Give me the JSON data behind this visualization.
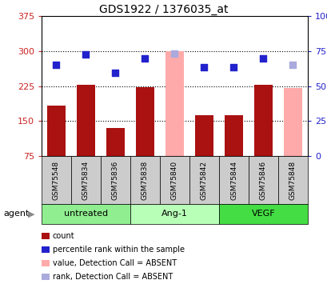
{
  "title": "GDS1922 / 1376035_at",
  "samples": [
    "GSM75548",
    "GSM75834",
    "GSM75836",
    "GSM75838",
    "GSM75840",
    "GSM75842",
    "GSM75844",
    "GSM75846",
    "GSM75848"
  ],
  "bar_values": [
    183,
    228,
    135,
    222,
    300,
    163,
    163,
    228,
    220
  ],
  "bar_absent": [
    false,
    false,
    false,
    false,
    true,
    false,
    false,
    false,
    true
  ],
  "dot_values": [
    270,
    292,
    253,
    285,
    295,
    265,
    265,
    285,
    270
  ],
  "dot_absent": [
    false,
    false,
    false,
    false,
    true,
    false,
    false,
    false,
    true
  ],
  "bar_color_present": "#aa1111",
  "bar_color_absent": "#ffaaaa",
  "dot_color_present": "#2222cc",
  "dot_color_absent": "#aaaadd",
  "ylim_left": [
    75,
    375
  ],
  "ylim_right": [
    0,
    100
  ],
  "yticks_left": [
    75,
    150,
    225,
    300,
    375
  ],
  "yticks_right": [
    0,
    25,
    50,
    75,
    100
  ],
  "groups": [
    {
      "label": "untreated",
      "indices": [
        0,
        1,
        2
      ],
      "color": "#90ee90"
    },
    {
      "label": "Ang-1",
      "indices": [
        3,
        4,
        5
      ],
      "color": "#b8ffb8"
    },
    {
      "label": "VEGF",
      "indices": [
        6,
        7,
        8
      ],
      "color": "#44dd44"
    }
  ],
  "agent_label": "agent",
  "grid_dotted_values": [
    150,
    225,
    300
  ],
  "background_color": "#ffffff",
  "tick_label_color_left": "#cc2222",
  "tick_label_color_right": "#2222cc",
  "bar_width": 0.6,
  "dot_size": 40,
  "xtick_label_bg": "#cccccc"
}
